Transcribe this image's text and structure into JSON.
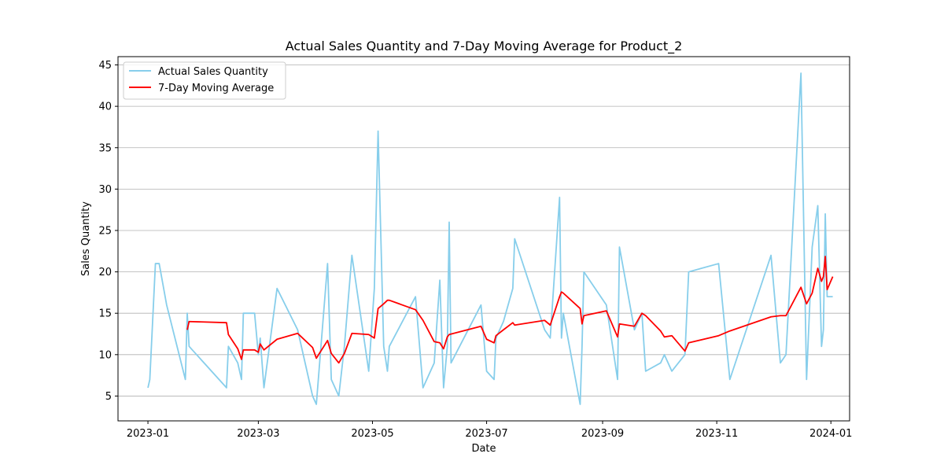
{
  "chart_data": {
    "type": "line",
    "title": "Actual Sales Quantity and 7-Day Moving Average for Product_2",
    "xlabel": "Date",
    "ylabel": "Sales Quantity",
    "ylim": [
      2,
      46
    ],
    "xlim": [
      "2022-12-16",
      "2024-01-11"
    ],
    "yticks": [
      5,
      10,
      15,
      20,
      25,
      30,
      35,
      40,
      45
    ],
    "xticks": [
      "2023-01",
      "2023-03",
      "2023-05",
      "2023-07",
      "2023-09",
      "2023-11",
      "2024-01"
    ],
    "grid": "y-axis only",
    "legend_position": "top-left",
    "series": [
      {
        "name": "Actual Sales Quantity",
        "color": "#87ceeb",
        "points": [
          [
            "2023-01-01",
            6
          ],
          [
            "2023-01-02",
            7
          ],
          [
            "2023-01-05",
            21
          ],
          [
            "2023-01-07",
            21
          ],
          [
            "2023-01-11",
            16
          ],
          [
            "2023-01-21",
            7
          ],
          [
            "2023-01-22",
            15
          ],
          [
            "2023-01-23",
            11
          ],
          [
            "2023-02-12",
            6
          ],
          [
            "2023-02-13",
            11
          ],
          [
            "2023-02-18",
            9
          ],
          [
            "2023-02-20",
            7
          ],
          [
            "2023-02-21",
            15
          ],
          [
            "2023-02-27",
            15
          ],
          [
            "2023-03-01",
            10
          ],
          [
            "2023-03-02",
            12
          ],
          [
            "2023-03-04",
            6
          ],
          [
            "2023-03-11",
            18
          ],
          [
            "2023-03-22",
            13
          ],
          [
            "2023-03-30",
            5
          ],
          [
            "2023-04-01",
            4
          ],
          [
            "2023-04-07",
            21
          ],
          [
            "2023-04-09",
            7
          ],
          [
            "2023-04-13",
            5
          ],
          [
            "2023-04-16",
            11
          ],
          [
            "2023-04-20",
            22
          ],
          [
            "2023-04-29",
            8
          ],
          [
            "2023-05-02",
            18
          ],
          [
            "2023-05-04",
            37
          ],
          [
            "2023-05-07",
            11
          ],
          [
            "2023-05-09",
            8
          ],
          [
            "2023-05-10",
            11
          ],
          [
            "2023-05-24",
            17
          ],
          [
            "2023-05-28",
            6
          ],
          [
            "2023-06-03",
            9
          ],
          [
            "2023-06-06",
            19
          ],
          [
            "2023-06-08",
            6
          ],
          [
            "2023-06-10",
            11
          ],
          [
            "2023-06-11",
            26
          ],
          [
            "2023-06-12",
            9
          ],
          [
            "2023-06-28",
            16
          ],
          [
            "2023-07-01",
            8
          ],
          [
            "2023-07-05",
            7
          ],
          [
            "2023-07-06",
            12
          ],
          [
            "2023-07-10",
            14
          ],
          [
            "2023-07-15",
            18
          ],
          [
            "2023-07-16",
            24
          ],
          [
            "2023-08-01",
            13
          ],
          [
            "2023-08-04",
            12
          ],
          [
            "2023-08-09",
            29
          ],
          [
            "2023-08-10",
            12
          ],
          [
            "2023-08-11",
            15
          ],
          [
            "2023-08-20",
            4
          ],
          [
            "2023-08-21",
            11
          ],
          [
            "2023-08-22",
            20
          ],
          [
            "2023-09-03",
            16
          ],
          [
            "2023-09-09",
            7
          ],
          [
            "2023-09-10",
            23
          ],
          [
            "2023-09-18",
            13
          ],
          [
            "2023-09-22",
            15
          ],
          [
            "2023-09-24",
            8
          ],
          [
            "2023-10-02",
            9
          ],
          [
            "2023-10-04",
            10
          ],
          [
            "2023-10-08",
            8
          ],
          [
            "2023-10-15",
            10
          ],
          [
            "2023-10-17",
            20
          ],
          [
            "2023-11-02",
            21
          ],
          [
            "2023-11-08",
            7
          ],
          [
            "2023-11-30",
            22
          ],
          [
            "2023-12-05",
            9
          ],
          [
            "2023-12-08",
            10
          ],
          [
            "2023-12-16",
            44
          ],
          [
            "2023-12-19",
            7
          ],
          [
            "2023-12-22",
            23
          ],
          [
            "2023-12-25",
            28
          ],
          [
            "2023-12-27",
            11
          ],
          [
            "2023-12-28",
            13
          ],
          [
            "2023-12-29",
            27
          ],
          [
            "2023-12-30",
            17
          ],
          [
            "2024-01-02",
            17
          ]
        ]
      },
      {
        "name": "7-Day Moving Average",
        "color": "#ff0000",
        "points": [
          [
            "2023-01-22",
            13
          ],
          [
            "2023-01-23",
            14
          ],
          [
            "2023-02-12",
            13.86
          ],
          [
            "2023-02-13",
            12.43
          ],
          [
            "2023-02-18",
            10.71
          ],
          [
            "2023-02-20",
            9.43
          ],
          [
            "2023-02-21",
            10.57
          ],
          [
            "2023-02-27",
            10.57
          ],
          [
            "2023-03-01",
            10.29
          ],
          [
            "2023-03-02",
            11.29
          ],
          [
            "2023-03-04",
            10.57
          ],
          [
            "2023-03-11",
            11.86
          ],
          [
            "2023-03-22",
            12.57
          ],
          [
            "2023-03-30",
            10.86
          ],
          [
            "2023-04-01",
            9.57
          ],
          [
            "2023-04-07",
            11.71
          ],
          [
            "2023-04-09",
            10.14
          ],
          [
            "2023-04-13",
            9
          ],
          [
            "2023-04-16",
            10.14
          ],
          [
            "2023-04-20",
            12.57
          ],
          [
            "2023-04-29",
            12.43
          ],
          [
            "2023-05-02",
            12
          ],
          [
            "2023-05-04",
            15.57
          ],
          [
            "2023-05-07",
            16.14
          ],
          [
            "2023-05-09",
            16.57
          ],
          [
            "2023-05-10",
            16.57
          ],
          [
            "2023-05-24",
            15.43
          ],
          [
            "2023-05-28",
            14.14
          ],
          [
            "2023-06-03",
            11.57
          ],
          [
            "2023-06-06",
            11.43
          ],
          [
            "2023-06-08",
            10.71
          ],
          [
            "2023-06-10",
            12.14
          ],
          [
            "2023-06-11",
            12.43
          ],
          [
            "2023-06-28",
            13.43
          ],
          [
            "2023-07-01",
            11.86
          ],
          [
            "2023-07-05",
            11.43
          ],
          [
            "2023-07-06",
            12.29
          ],
          [
            "2023-07-10",
            13
          ],
          [
            "2023-07-15",
            13.86
          ],
          [
            "2023-07-16",
            13.57
          ],
          [
            "2023-08-01",
            14.14
          ],
          [
            "2023-08-04",
            13.57
          ],
          [
            "2023-08-09",
            17
          ],
          [
            "2023-08-10",
            17.57
          ],
          [
            "2023-08-11",
            17.43
          ],
          [
            "2023-08-20",
            15.57
          ],
          [
            "2023-08-21",
            13.71
          ],
          [
            "2023-08-22",
            14.71
          ],
          [
            "2023-09-03",
            15.29
          ],
          [
            "2023-09-09",
            12.14
          ],
          [
            "2023-09-10",
            13.71
          ],
          [
            "2023-09-18",
            13.43
          ],
          [
            "2023-09-22",
            15
          ],
          [
            "2023-09-24",
            14.71
          ],
          [
            "2023-10-02",
            12.86
          ],
          [
            "2023-10-04",
            12.14
          ],
          [
            "2023-10-08",
            12.29
          ],
          [
            "2023-10-15",
            10.43
          ],
          [
            "2023-10-17",
            11.43
          ],
          [
            "2023-11-02",
            12.29
          ],
          [
            "2023-11-08",
            12.86
          ],
          [
            "2023-11-30",
            14.57
          ],
          [
            "2023-12-05",
            14.71
          ],
          [
            "2023-12-08",
            14.71
          ],
          [
            "2023-12-16",
            18.14
          ],
          [
            "2023-12-19",
            16.14
          ],
          [
            "2023-12-22",
            17.43
          ],
          [
            "2023-12-25",
            20.43
          ],
          [
            "2023-12-27",
            18.86
          ],
          [
            "2023-12-28",
            19.43
          ],
          [
            "2023-12-29",
            21.86
          ],
          [
            "2023-12-30",
            17.86
          ],
          [
            "2024-01-02",
            19.43
          ]
        ]
      }
    ]
  }
}
